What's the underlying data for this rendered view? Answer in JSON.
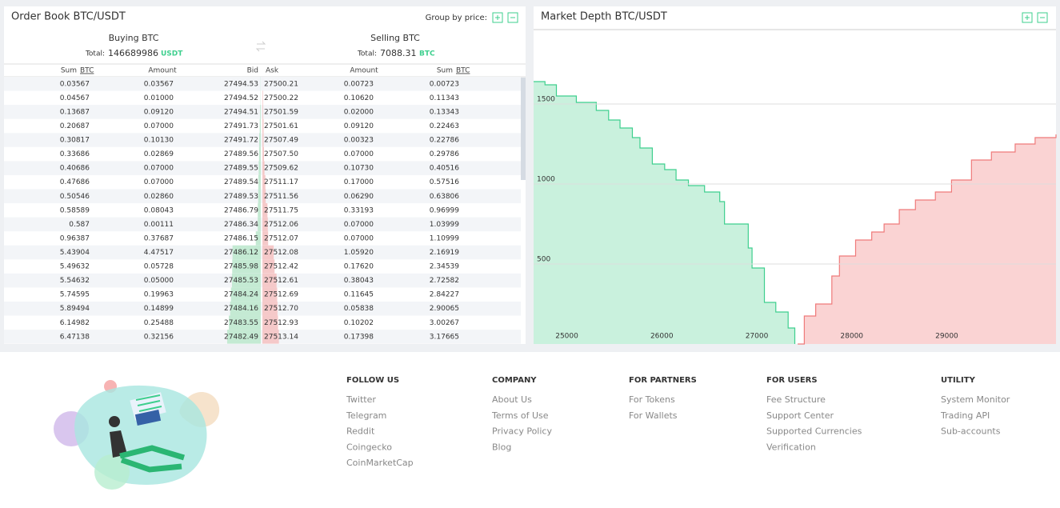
{
  "order_book": {
    "title": "Order Book BTC/USDT",
    "group_label": "Group by price:",
    "buying": {
      "heading": "Buying BTC",
      "total_label": "Total:",
      "total": "146689986",
      "currency": "USDT"
    },
    "selling": {
      "heading": "Selling BTC",
      "total_label": "Total:",
      "total": "7088.31",
      "currency": "BTC"
    },
    "columns": [
      {
        "label": "Sum",
        "unit": "BTC"
      },
      {
        "label": "Amount"
      },
      {
        "label": "Bid"
      },
      {
        "label": "Ask"
      },
      {
        "label": "Amount"
      },
      {
        "label": "Sum",
        "unit": "BTC"
      }
    ],
    "rows": [
      [
        "0.03567",
        "0.03567",
        "27494.53",
        "27500.21",
        "0.00723",
        "0.00723"
      ],
      [
        "0.04567",
        "0.01000",
        "27494.52",
        "27500.22",
        "0.10620",
        "0.11343"
      ],
      [
        "0.13687",
        "0.09120",
        "27494.51",
        "27501.59",
        "0.02000",
        "0.13343"
      ],
      [
        "0.20687",
        "0.07000",
        "27491.73",
        "27501.61",
        "0.09120",
        "0.22463"
      ],
      [
        "0.30817",
        "0.10130",
        "27491.72",
        "27507.49",
        "0.00323",
        "0.22786"
      ],
      [
        "0.33686",
        "0.02869",
        "27489.56",
        "27507.50",
        "0.07000",
        "0.29786"
      ],
      [
        "0.40686",
        "0.07000",
        "27489.55",
        "27509.62",
        "0.10730",
        "0.40516"
      ],
      [
        "0.47686",
        "0.07000",
        "27489.54",
        "27511.17",
        "0.17000",
        "0.57516"
      ],
      [
        "0.50546",
        "0.02860",
        "27489.53",
        "27511.56",
        "0.06290",
        "0.63806"
      ],
      [
        "0.58589",
        "0.08043",
        "27486.79",
        "27511.75",
        "0.33193",
        "0.96999"
      ],
      [
        "0.587",
        "0.00111",
        "27486.34",
        "27512.06",
        "0.07000",
        "1.03999"
      ],
      [
        "0.96387",
        "0.37687",
        "27486.15",
        "27512.07",
        "0.07000",
        "1.10999"
      ],
      [
        "5.43904",
        "4.47517",
        "27486.12",
        "27512.08",
        "1.05920",
        "2.16919"
      ],
      [
        "5.49632",
        "0.05728",
        "27485.98",
        "27512.42",
        "0.17620",
        "2.34539"
      ],
      [
        "5.54632",
        "0.05000",
        "27485.53",
        "27512.61",
        "0.38043",
        "2.72582"
      ],
      [
        "5.74595",
        "0.19963",
        "27484.24",
        "27512.69",
        "0.11645",
        "2.84227"
      ],
      [
        "5.89494",
        "0.14899",
        "27484.16",
        "27512.70",
        "0.05838",
        "2.90065"
      ],
      [
        "6.14982",
        "0.25488",
        "27483.55",
        "27512.93",
        "0.10202",
        "3.00267"
      ],
      [
        "6.47138",
        "0.32156",
        "27482.49",
        "27513.14",
        "0.17398",
        "3.17665"
      ]
    ]
  },
  "chart_data": {
    "type": "depth",
    "title": "Market Depth BTC/USDT",
    "xlim": [
      24650,
      30150
    ],
    "ylim": [
      0,
      1960
    ],
    "xticks": [
      25000,
      26000,
      27000,
      28000,
      29000
    ],
    "yticks": [
      500,
      1000,
      1500
    ],
    "grid": true,
    "bids": {
      "color": "#3ecf8e",
      "x": [
        24650,
        24770,
        24890,
        25100,
        25310,
        25440,
        25560,
        25690,
        25770,
        25900,
        26030,
        26150,
        26280,
        26450,
        26610,
        26660,
        26910,
        26950,
        27080,
        27200,
        27330,
        27400
      ],
      "values": [
        1640,
        1620,
        1550,
        1510,
        1460,
        1400,
        1350,
        1290,
        1225,
        1125,
        1090,
        1025,
        990,
        950,
        890,
        750,
        600,
        475,
        260,
        200,
        100,
        0
      ]
    },
    "asks": {
      "color": "#ef7a7a",
      "x": [
        27430,
        27500,
        27620,
        27790,
        27870,
        28040,
        28210,
        28340,
        28500,
        28670,
        28880,
        29050,
        29260,
        29470,
        29720,
        29930,
        30150
      ],
      "values": [
        0,
        175,
        250,
        425,
        550,
        650,
        700,
        750,
        840,
        900,
        950,
        1025,
        1150,
        1200,
        1250,
        1290,
        1310
      ]
    }
  },
  "footer": {
    "columns": [
      {
        "heading": "FOLLOW US",
        "links": [
          "Twitter",
          "Telegram",
          "Reddit",
          "Coingecko",
          "CoinMarketCap"
        ]
      },
      {
        "heading": "COMPANY",
        "links": [
          "About Us",
          "Terms of Use",
          "Privacy Policy",
          "Blog"
        ]
      },
      {
        "heading": "FOR PARTNERS",
        "links": [
          "For Tokens",
          "For Wallets"
        ]
      },
      {
        "heading": "FOR USERS",
        "links": [
          "Fee Structure",
          "Support Center",
          "Supported Currencies",
          "Verification"
        ]
      },
      {
        "heading": "UTILITY",
        "links": [
          "System Monitor",
          "Trading API",
          "Sub-accounts"
        ]
      }
    ]
  }
}
